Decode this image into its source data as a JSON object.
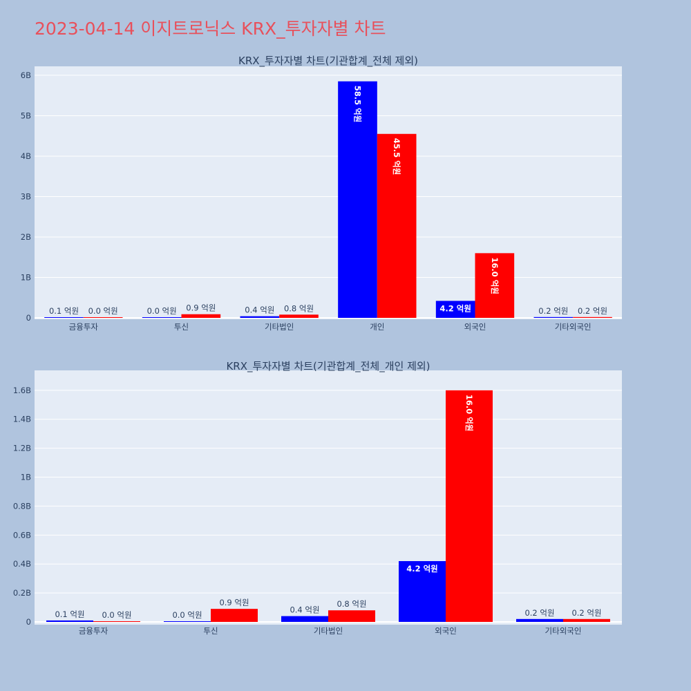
{
  "title": "2023-04-14 이지트로닉스 KRX_투자자별 차트",
  "colors": {
    "buy": "#0000ff",
    "sell": "#ff0000",
    "plot_bg": "#e5ecf6",
    "page_bg": "#b0c4de",
    "title": "#e8505b"
  },
  "chart_data": [
    {
      "type": "bar",
      "title": "KRX_투자자별 차트(기관합계_전체 제외)",
      "categories": [
        "금융투자",
        "투신",
        "기타법인",
        "개인",
        "외국인",
        "기타외국인"
      ],
      "series": [
        {
          "color": "#0000ff",
          "values": [
            10000000,
            3000000,
            40000000,
            5850000000,
            420000000,
            20000000
          ],
          "labels": [
            "0.1 억원",
            "0.0 억원",
            "0.4 억원",
            "58.5 억원",
            "4.2 억원",
            "0.2 억원"
          ]
        },
        {
          "color": "#ff0000",
          "values": [
            2000000,
            90000000,
            80000000,
            4550000000,
            1600000000,
            20000000
          ],
          "labels": [
            "0.0 억원",
            "0.9 억원",
            "0.8 억원",
            "45.5 억원",
            "16.0 억원",
            "0.2 억원"
          ]
        }
      ],
      "yticks": [
        0,
        1000000000,
        2000000000,
        3000000000,
        4000000000,
        5000000000,
        6000000000
      ],
      "yticklabels": [
        "0",
        "1B",
        "2B",
        "3B",
        "4B",
        "5B",
        "6B"
      ],
      "ylim": [
        0,
        6050000000
      ],
      "grid": true
    },
    {
      "type": "bar",
      "title": "KRX_투자자별 차트(기관합계_전체_개인 제외)",
      "categories": [
        "금융투자",
        "투신",
        "기타법인",
        "외국인",
        "기타외국인"
      ],
      "series": [
        {
          "color": "#0000ff",
          "values": [
            10000000,
            3000000,
            40000000,
            420000000,
            20000000
          ],
          "labels": [
            "0.1 억원",
            "0.0 억원",
            "0.4 억원",
            "4.2 억원",
            "0.2 억원"
          ]
        },
        {
          "color": "#ff0000",
          "values": [
            2000000,
            90000000,
            80000000,
            1600000000,
            20000000
          ],
          "labels": [
            "0.0 억원",
            "0.9 억원",
            "0.8 억원",
            "16.0 억원",
            "0.2 억원"
          ]
        }
      ],
      "yticks": [
        0,
        200000000,
        400000000,
        600000000,
        800000000,
        1000000000,
        1200000000,
        1400000000,
        1600000000
      ],
      "yticklabels": [
        "0",
        "0.2B",
        "0.4B",
        "0.6B",
        "0.8B",
        "1B",
        "1.2B",
        "1.4B",
        "1.6B"
      ],
      "ylim": [
        0,
        1690000000
      ],
      "grid": true
    }
  ]
}
